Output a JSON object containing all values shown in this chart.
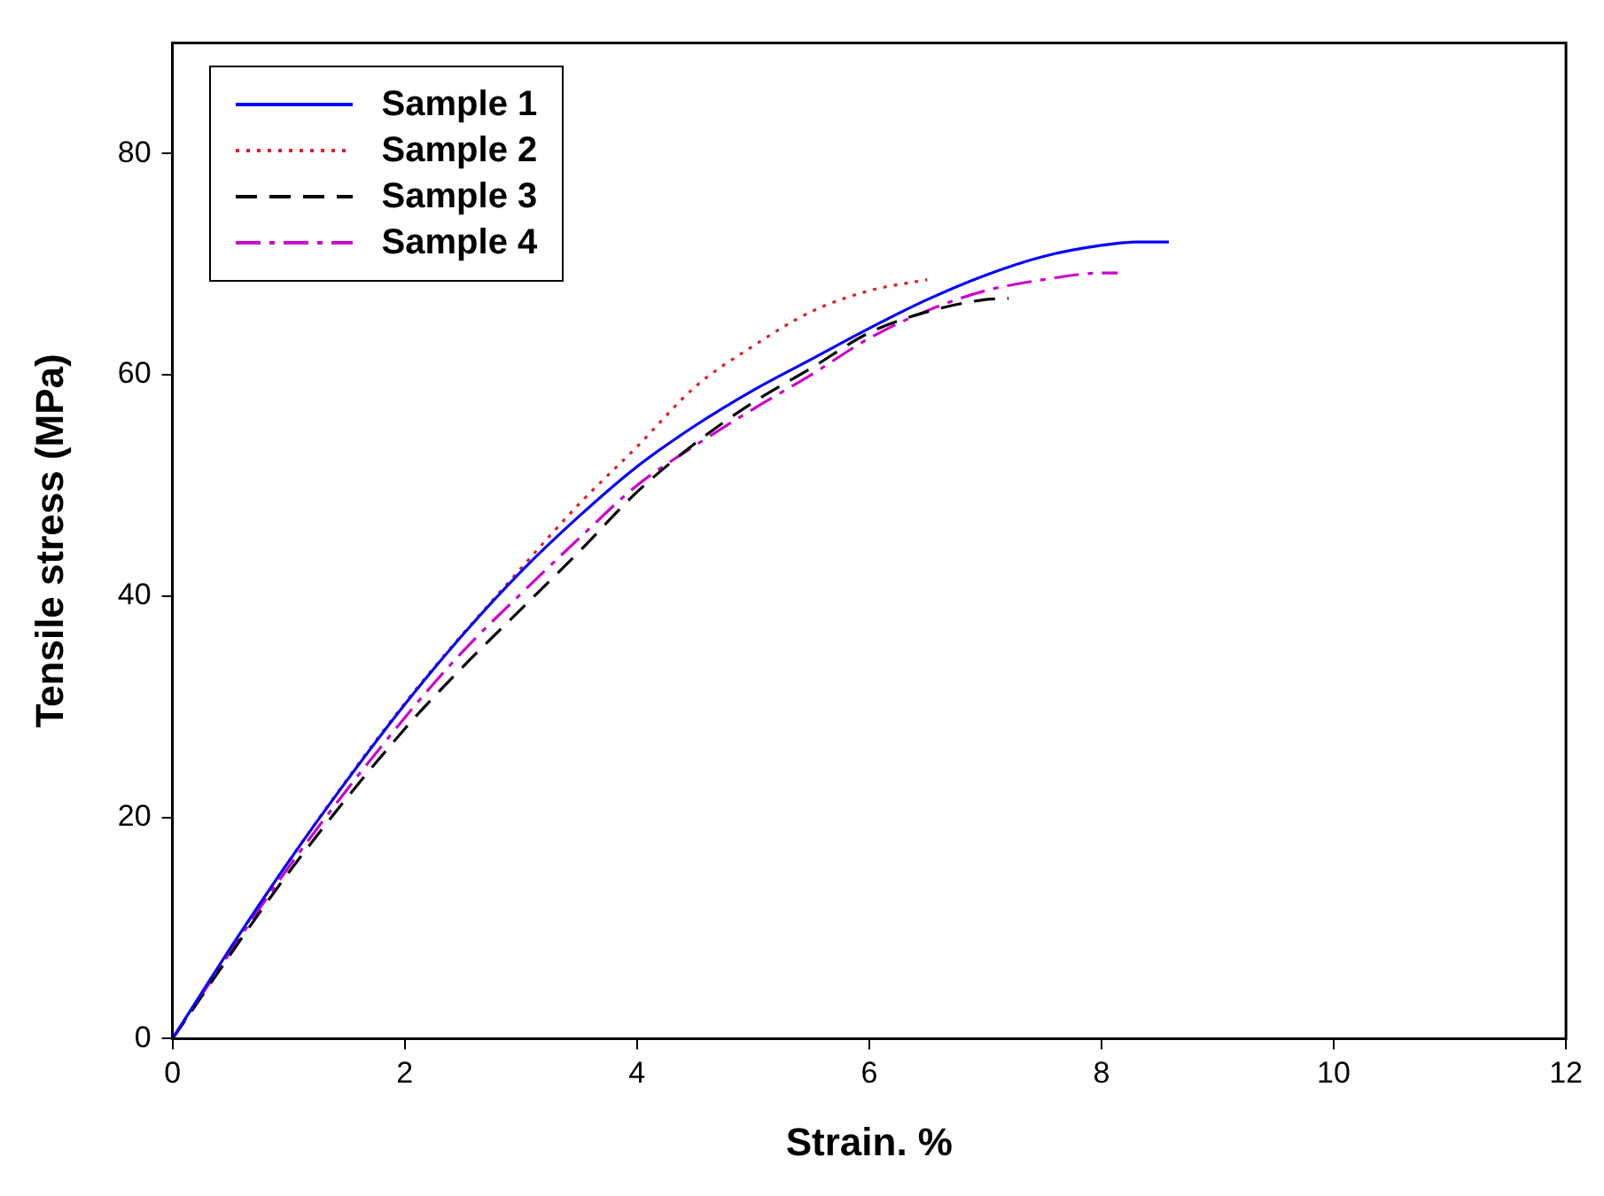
{
  "chart_data": {
    "type": "line",
    "xlabel": "Strain. %",
    "ylabel": "Tensile stress (MPa)",
    "xlim": [
      0,
      12
    ],
    "xticks": [
      0,
      2,
      4,
      6,
      8,
      10,
      12
    ],
    "ylim": [
      0,
      90
    ],
    "yticks": [
      0,
      20,
      40,
      60,
      80
    ],
    "grid": false,
    "legend": "top left",
    "marker": "none",
    "series": [
      {
        "name": "Sample 1",
        "color": "#0000ff",
        "line_style": "solid",
        "x": [
          0,
          0.5,
          1,
          1.5,
          2,
          2.5,
          3,
          3.5,
          4,
          4.5,
          5,
          5.5,
          6,
          6.5,
          7,
          7.5,
          8,
          8.3,
          8.58
        ],
        "values": [
          0,
          8.2,
          16,
          23.3,
          30.2,
          36.5,
          42.2,
          47.2,
          51.7,
          55.4,
          58.6,
          61.4,
          64.2,
          66.8,
          69,
          70.7,
          71.7,
          72,
          72
        ]
      },
      {
        "name": "Sample 2",
        "color": "#e02020",
        "line_style": "dotted",
        "x": [
          0,
          1,
          2,
          3,
          3.5,
          4,
          4.5,
          5,
          5.5,
          6,
          6.5
        ],
        "values": [
          0,
          16,
          30.3,
          42.5,
          48.3,
          53.5,
          58.9,
          62.6,
          65.7,
          67.6,
          68.6
        ]
      },
      {
        "name": "Sample 3",
        "color": "#000000",
        "line_style": "dashed",
        "x": [
          0,
          1,
          2,
          2.5,
          3,
          3.5,
          4,
          4.5,
          5,
          5.5,
          6,
          6.5,
          7,
          7.2
        ],
        "values": [
          0,
          15,
          28,
          33.6,
          38.8,
          44,
          49.4,
          53.8,
          57.5,
          60.6,
          63.8,
          65.7,
          66.8,
          66.9
        ]
      },
      {
        "name": "Sample 4",
        "color": "#cc00cc",
        "line_style": "dashdot",
        "x": [
          0,
          1,
          2,
          2.5,
          3,
          3.5,
          4,
          4.5,
          5,
          5.5,
          6,
          6.5,
          7,
          7.5,
          8,
          8.14
        ],
        "values": [
          0,
          15.5,
          29,
          35,
          40.2,
          45.2,
          50,
          53.6,
          56.9,
          60,
          63.3,
          65.8,
          67.6,
          68.6,
          69.2,
          69.2
        ]
      }
    ]
  }
}
